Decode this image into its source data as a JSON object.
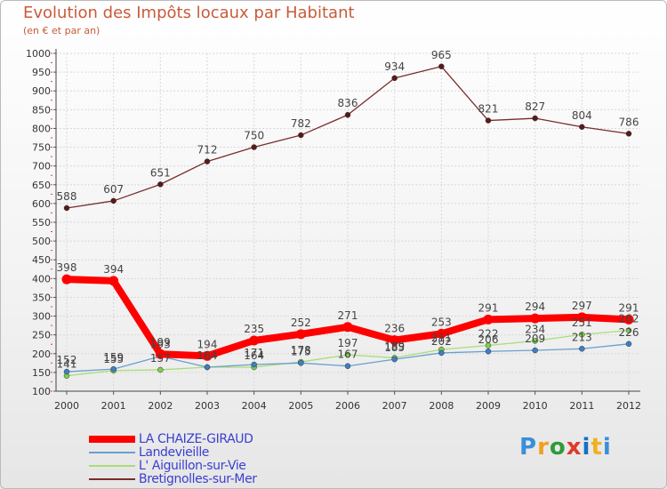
{
  "chart_data": {
    "type": "line",
    "title": "Evolution des Impôts locaux par Habitant",
    "subtitle": "(en € et par an)",
    "xlabel": "",
    "ylabel": "",
    "ylim": [
      100,
      1000
    ],
    "y_ticks": [
      "100",
      "150",
      "200",
      "250",
      "300",
      "350",
      "400",
      "450",
      "500",
      "550",
      "600",
      "650",
      "700",
      "750",
      "800",
      "850",
      "900",
      "950",
      "1000"
    ],
    "x": [
      "2000",
      "2001",
      "2002",
      "2003",
      "2004",
      "2005",
      "2006",
      "2007",
      "2008",
      "2009",
      "2010",
      "2011",
      "2012"
    ],
    "series": [
      {
        "name": "LA CHAIZE-GIRAUD",
        "color": "#ff0000",
        "marker_color": "#ff0000",
        "values": [
          398,
          394,
          199,
          194,
          235,
          252,
          271,
          236,
          253,
          291,
          294,
          297,
          291
        ]
      },
      {
        "name": "Landevieille",
        "color": "#6a9fcf",
        "marker_color": "#3d7fc2",
        "values": [
          152,
          159,
          193,
          164,
          171,
          175,
          167,
          185,
          202,
          206,
          209,
          213,
          226
        ]
      },
      {
        "name": "L' Aiguillon-sur-Vie",
        "color": "#a9dd7a",
        "marker_color": "#7fd04a",
        "values": [
          141,
          155,
          157,
          164,
          164,
          178,
          197,
          189,
          211,
          222,
          234,
          251,
          262
        ]
      },
      {
        "name": "Bretignolles-sur-Mer",
        "color": "#7a2c2c",
        "marker_color": "#5a1a1a",
        "values": [
          588,
          607,
          651,
          712,
          750,
          782,
          836,
          934,
          965,
          821,
          827,
          804,
          786
        ]
      }
    ],
    "legend_position": "bottom-left",
    "grid": true
  },
  "logo": {
    "text": "Proxiti"
  }
}
